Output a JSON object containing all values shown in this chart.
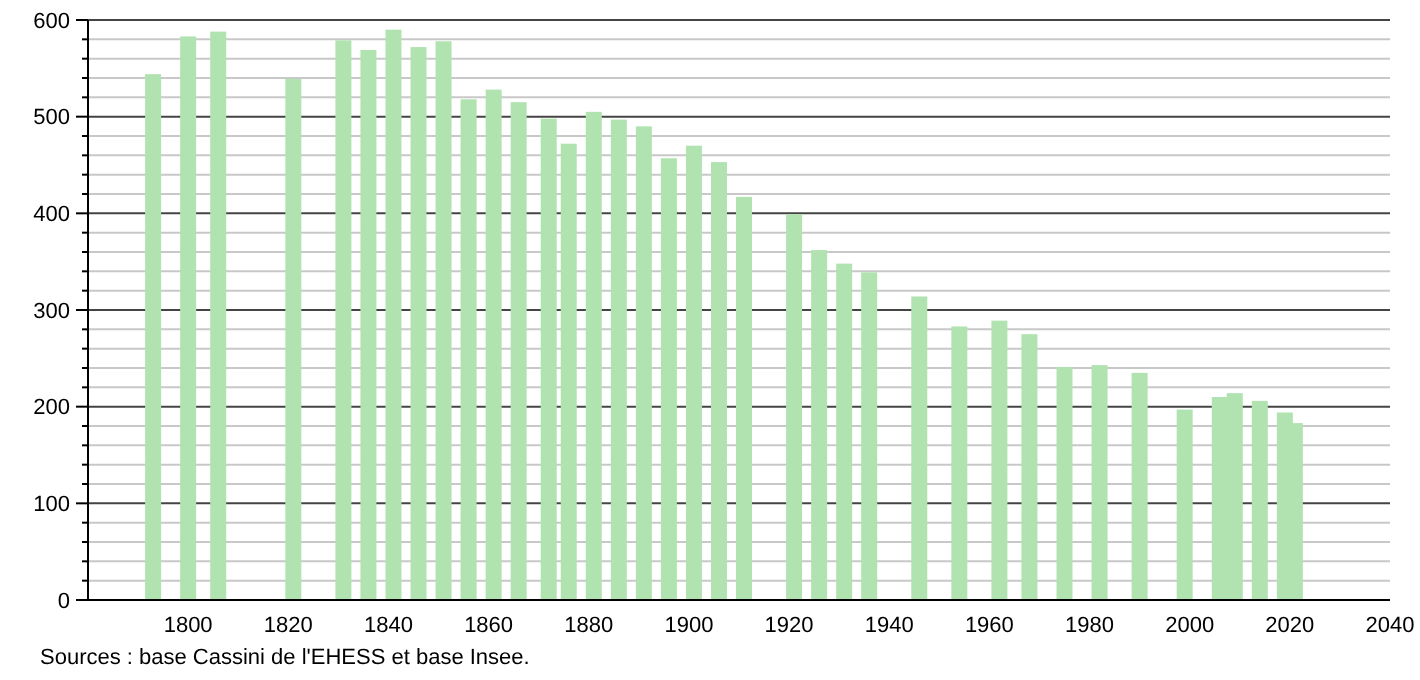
{
  "chart_data": {
    "type": "bar",
    "x": [
      1793,
      1800,
      1806,
      1821,
      1831,
      1836,
      1841,
      1846,
      1851,
      1856,
      1861,
      1866,
      1872,
      1876,
      1881,
      1886,
      1891,
      1896,
      1901,
      1906,
      1911,
      1921,
      1926,
      1931,
      1936,
      1946,
      1954,
      1962,
      1968,
      1975,
      1982,
      1990,
      1999,
      2006,
      2009,
      2014,
      2019,
      2021
    ],
    "values": [
      544,
      583,
      588,
      539,
      579,
      569,
      590,
      572,
      578,
      518,
      528,
      515,
      498,
      472,
      505,
      497,
      490,
      457,
      470,
      453,
      417,
      399,
      362,
      348,
      339,
      314,
      283,
      289,
      275,
      241,
      243,
      235,
      197,
      210,
      214,
      206,
      194,
      183
    ],
    "color": "#b1e3b1",
    "xlim": [
      1780,
      2040
    ],
    "xticks": [
      1800,
      1820,
      1840,
      1860,
      1880,
      1900,
      1920,
      1940,
      1960,
      1980,
      2000,
      2020,
      2040
    ],
    "ylim": [
      0,
      600
    ],
    "yticks": [
      0,
      {
        "value": 20,
        "label": null
      },
      {
        "value": 40,
        "label": null
      },
      {
        "value": 60,
        "label": null
      },
      {
        "value": 80,
        "label": null
      },
      100,
      {
        "value": 120,
        "label": null
      },
      {
        "value": 140,
        "label": null
      },
      {
        "value": 160,
        "label": null
      },
      {
        "value": 180,
        "label": null
      },
      200,
      {
        "value": 220,
        "label": null
      },
      {
        "value": 240,
        "label": null
      },
      {
        "value": 260,
        "label": null
      },
      {
        "value": 280,
        "label": null
      },
      300,
      {
        "value": 320,
        "label": null
      },
      {
        "value": 340,
        "label": null
      },
      {
        "value": 360,
        "label": null
      },
      {
        "value": 380,
        "label": null
      },
      400,
      {
        "value": 420,
        "label": null
      },
      {
        "value": 440,
        "label": null
      },
      {
        "value": 460,
        "label": null
      },
      {
        "value": 480,
        "label": null
      },
      500,
      {
        "value": 520,
        "label": null
      },
      {
        "value": 540,
        "label": null
      },
      {
        "value": 560,
        "label": null
      },
      {
        "value": 580,
        "label": null
      },
      600
    ],
    "grid": "y",
    "annotations": [
      "Sources : base Cassini de l'EHESS et base Insee."
    ]
  }
}
